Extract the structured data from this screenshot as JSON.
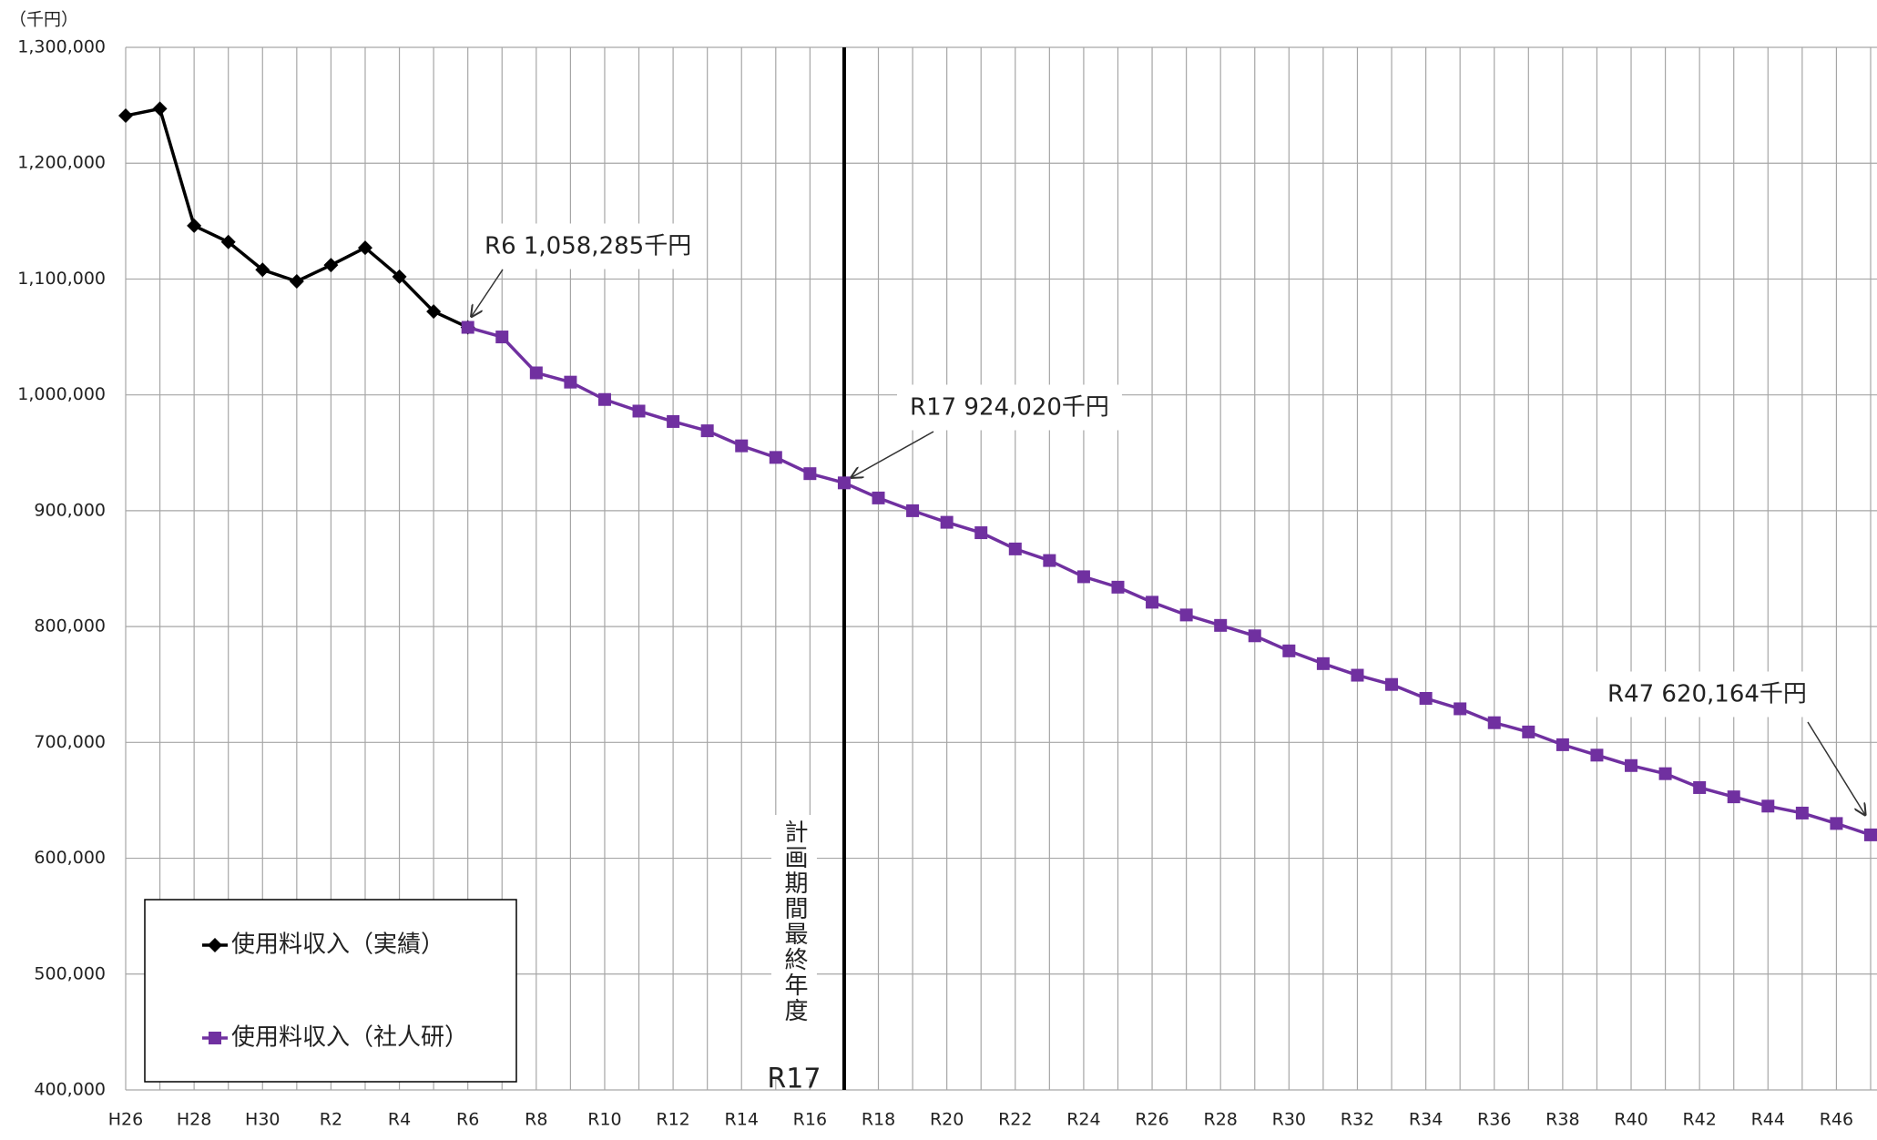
{
  "chart_data": {
    "type": "line",
    "unit_label": "（千円）",
    "categories": [
      "H26",
      null,
      "H28",
      null,
      "H30",
      null,
      "R2",
      null,
      "R4",
      null,
      "R6",
      null,
      "R8",
      null,
      "R10",
      null,
      "R12",
      null,
      "R14",
      null,
      "R16",
      null,
      "R18",
      null,
      "R20",
      null,
      "R22",
      null,
      "R24",
      null,
      "R26",
      null,
      "R28",
      null,
      "R30",
      null,
      "R32",
      null,
      "R34",
      null,
      "R36",
      null,
      "R38",
      null,
      "R40",
      null,
      "R42",
      null,
      "R44",
      null,
      "R46",
      null
    ],
    "series": [
      {
        "name": "使用料収入（実績）",
        "color": "#000000",
        "marker": "diamond",
        "values": [
          1241000,
          1247000,
          1146000,
          1132000,
          1108000,
          1098000,
          1112000,
          1127000,
          1102000,
          1072000,
          1058285,
          null,
          null,
          null,
          null,
          null,
          null,
          null,
          null,
          null,
          null,
          null,
          null,
          null,
          null,
          null,
          null,
          null,
          null,
          null,
          null,
          null,
          null,
          null,
          null,
          null,
          null,
          null,
          null,
          null,
          null,
          null,
          null,
          null,
          null,
          null,
          null,
          null,
          null,
          null,
          null,
          null
        ]
      },
      {
        "name": "使用料収入（社人研）",
        "color": "#7030a0",
        "marker": "square",
        "values": [
          null,
          null,
          null,
          null,
          null,
          null,
          null,
          null,
          null,
          null,
          1058285,
          1050000,
          1019000,
          1011000,
          996000,
          986000,
          977000,
          969000,
          956000,
          946000,
          932000,
          924020,
          911000,
          900000,
          890000,
          881000,
          867000,
          857000,
          843000,
          834000,
          821000,
          810000,
          801000,
          792000,
          779000,
          768000,
          758000,
          750000,
          738000,
          729000,
          717000,
          709000,
          698000,
          689000,
          680000,
          673000,
          661000,
          653000,
          645000,
          639000,
          630000,
          620164
        ]
      }
    ],
    "ylim": [
      400000,
      1300000
    ],
    "yticks": [
      {
        "value": 400000,
        "label": "400,000"
      },
      {
        "value": 500000,
        "label": "500,000"
      },
      {
        "value": 600000,
        "label": "600,000"
      },
      {
        "value": 700000,
        "label": "700,000"
      },
      {
        "value": 800000,
        "label": "800,000"
      },
      {
        "value": 900000,
        "label": "900,000"
      },
      {
        "value": 1000000,
        "label": "1,000,000"
      },
      {
        "value": 1100000,
        "label": "1,100,000"
      },
      {
        "value": 1200000,
        "label": "1,200,000"
      },
      {
        "value": 1300000,
        "label": "1,300,000"
      }
    ],
    "grid": true,
    "legend": "lower left",
    "annotations": [
      "R6 1,058,285千円",
      "R17 924,020千円",
      "R47 620,164千円"
    ],
    "vertical_note": "計画期間最終年度",
    "vertical_note_year": "R17"
  }
}
